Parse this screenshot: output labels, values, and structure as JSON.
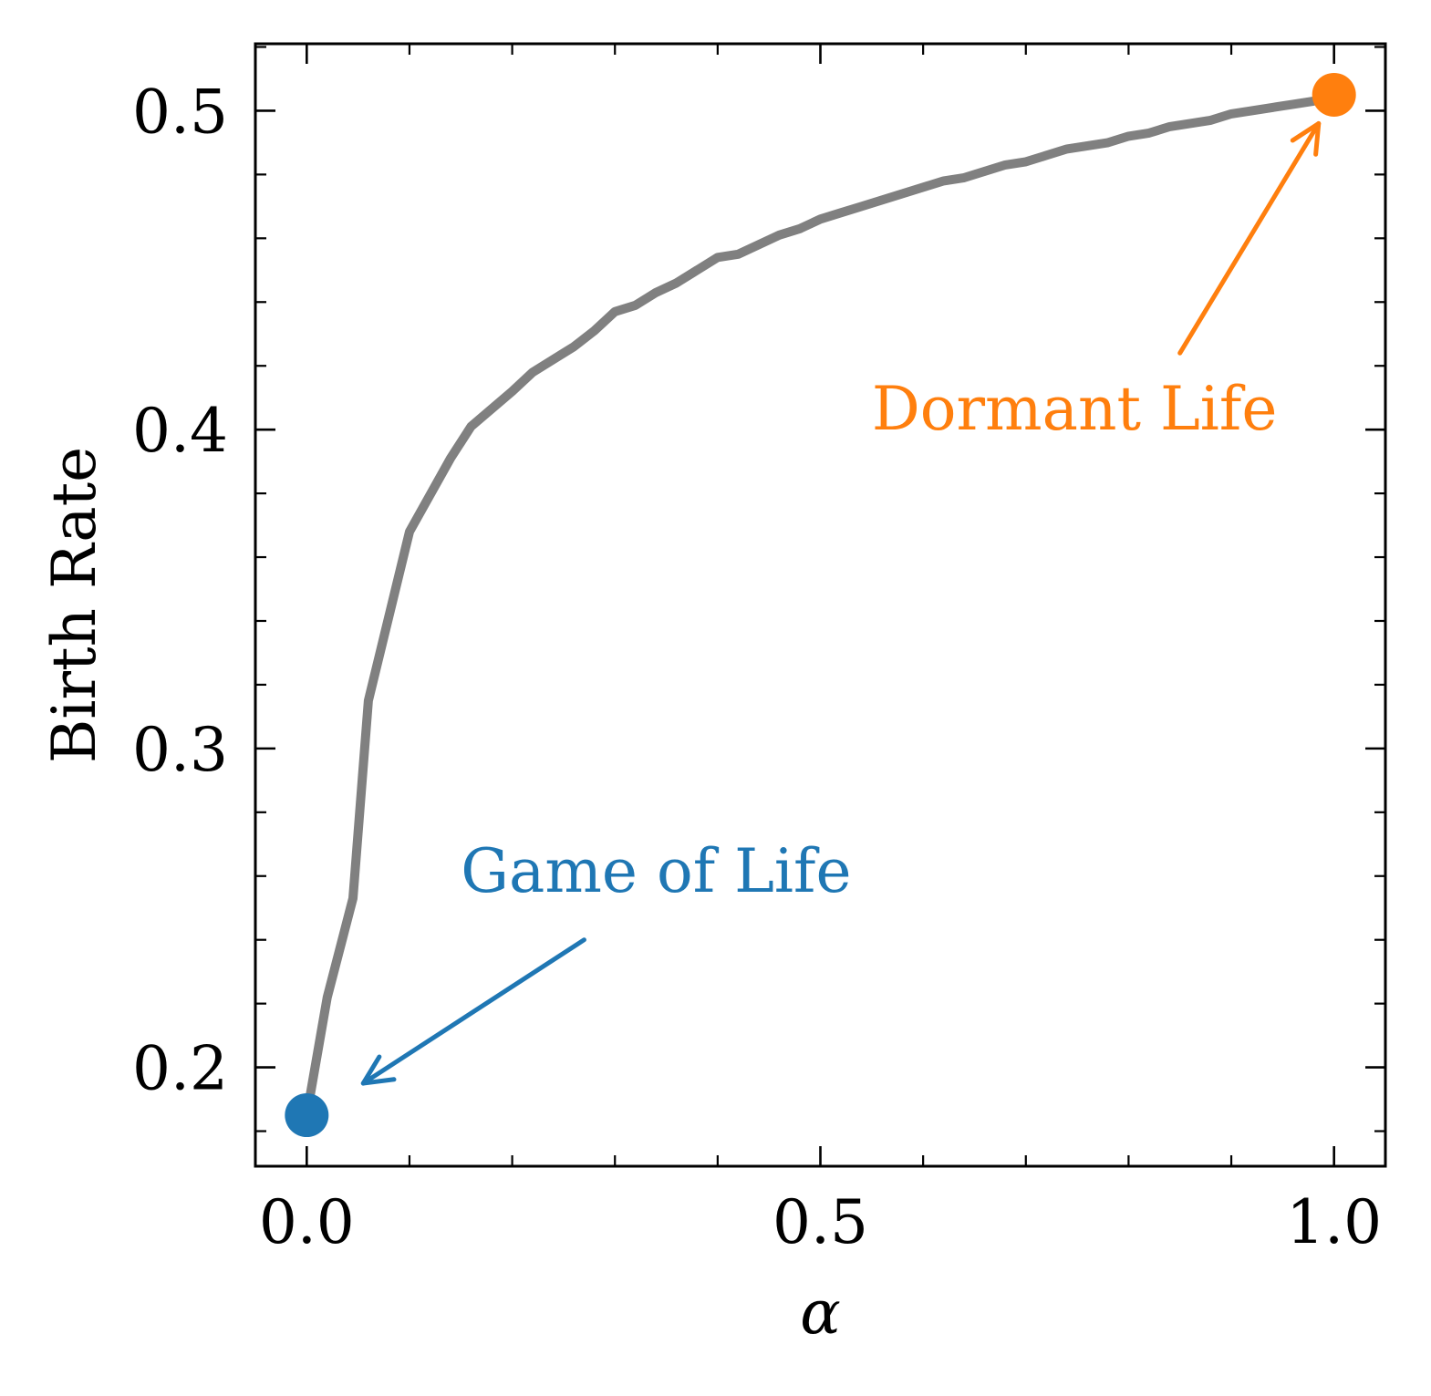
{
  "chart_data": {
    "type": "line",
    "title": "",
    "xlabel": "α",
    "ylabel": "Birth Rate",
    "xlim": [
      -0.05,
      1.05
    ],
    "ylim": [
      0.169,
      0.521
    ],
    "xticks": [
      0.0,
      0.5,
      1.0
    ],
    "xtick_labels": [
      "0.0",
      "0.5",
      "1.0"
    ],
    "yticks": [
      0.2,
      0.3,
      0.4,
      0.5
    ],
    "ytick_labels": [
      "0.2",
      "0.3",
      "0.4",
      "0.5"
    ],
    "x_minor_step": 0.1,
    "y_minor_step": 0.02,
    "grid": false,
    "series": [
      {
        "color": "#808080",
        "x": [
          0.0,
          0.02,
          0.045,
          0.06,
          0.1,
          0.14,
          0.16,
          0.2,
          0.22,
          0.24,
          0.26,
          0.28,
          0.3,
          0.32,
          0.34,
          0.36,
          0.38,
          0.4,
          0.42,
          0.44,
          0.46,
          0.48,
          0.5,
          0.52,
          0.54,
          0.56,
          0.58,
          0.6,
          0.62,
          0.64,
          0.66,
          0.68,
          0.7,
          0.72,
          0.74,
          0.76,
          0.78,
          0.8,
          0.82,
          0.84,
          0.86,
          0.88,
          0.9,
          0.92,
          0.94,
          0.96,
          0.98,
          1.0
        ],
        "y": [
          0.185,
          0.222,
          0.253,
          0.315,
          0.368,
          0.391,
          0.401,
          0.412,
          0.418,
          0.422,
          0.426,
          0.431,
          0.437,
          0.439,
          0.443,
          0.446,
          0.45,
          0.454,
          0.455,
          0.458,
          0.461,
          0.463,
          0.466,
          0.468,
          0.47,
          0.472,
          0.474,
          0.476,
          0.478,
          0.479,
          0.481,
          0.483,
          0.484,
          0.486,
          0.488,
          0.489,
          0.49,
          0.492,
          0.493,
          0.495,
          0.496,
          0.497,
          0.499,
          0.5,
          0.501,
          0.502,
          0.503,
          0.505
        ]
      }
    ],
    "points": [
      {
        "x": 0.0,
        "y": 0.185,
        "color": "#1f77b4"
      },
      {
        "x": 1.0,
        "y": 0.505,
        "color": "#ff7f0e"
      }
    ],
    "annotations": [
      {
        "text": "Game of Life",
        "color": "#1f77b4",
        "text_x": 0.15,
        "text_y": 0.255,
        "arrow_from": [
          0.27,
          0.24
        ],
        "arrow_to": [
          0.055,
          0.195
        ]
      },
      {
        "text": "Dormant Life",
        "color": "#ff7f0e",
        "text_x": 0.55,
        "text_y": 0.4,
        "arrow_from": [
          0.85,
          0.424
        ],
        "arrow_to": [
          0.985,
          0.496
        ]
      }
    ]
  }
}
